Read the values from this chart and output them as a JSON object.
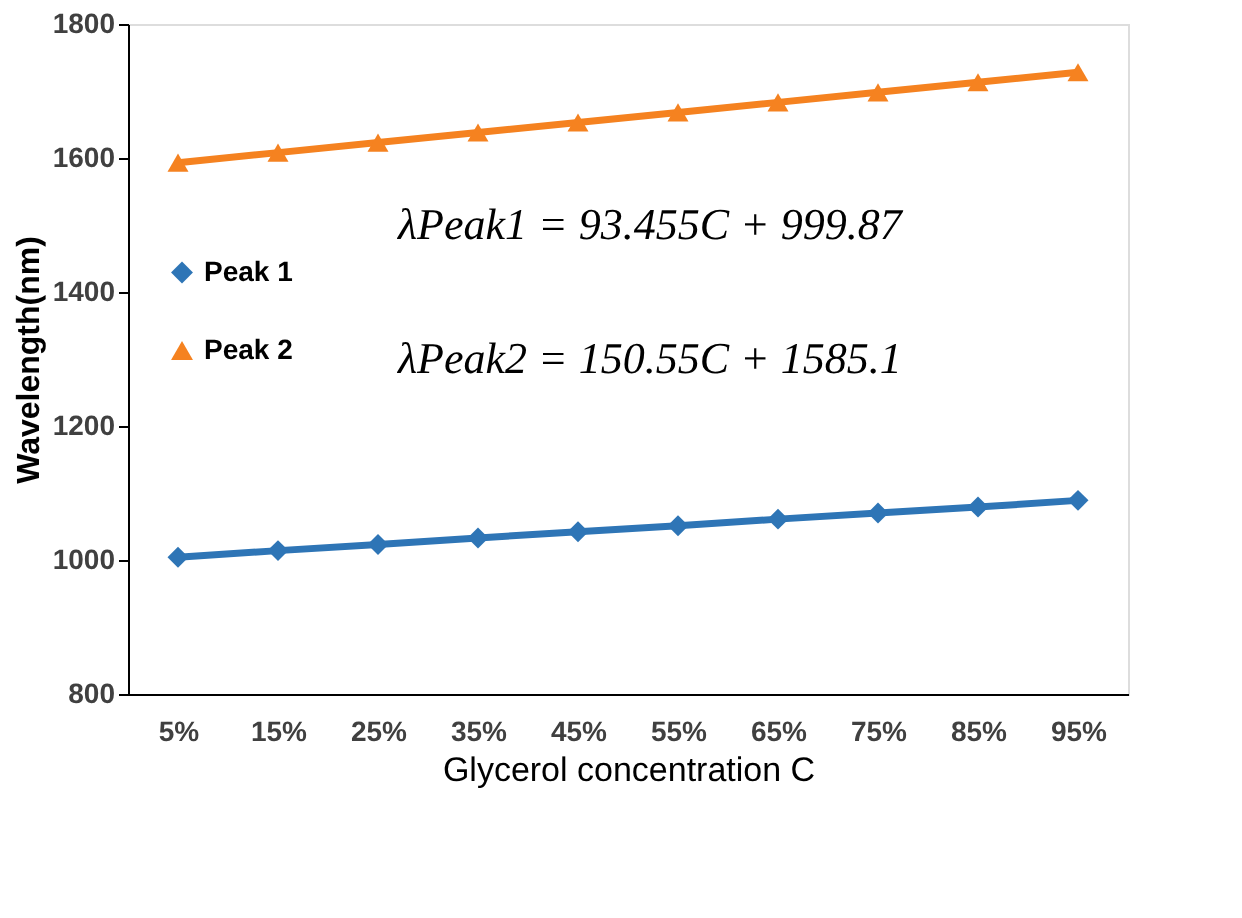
{
  "chart_data": {
    "type": "line",
    "xlabel": "Glycerol concentration C",
    "ylabel": "Wavelength(nm)",
    "categories": [
      "5%",
      "15%",
      "25%",
      "35%",
      "45%",
      "55%",
      "65%",
      "75%",
      "85%",
      "95%"
    ],
    "series": [
      {
        "name": "Peak 1",
        "color": "#2e75b6",
        "marker": "diamond",
        "values": [
          1004,
          1014,
          1023,
          1033,
          1042,
          1051,
          1061,
          1070,
          1079,
          1089
        ]
      },
      {
        "name": "Peak 2",
        "color": "#f58220",
        "marker": "triangle",
        "values": [
          1593,
          1608,
          1623,
          1638,
          1653,
          1668,
          1683,
          1698,
          1713,
          1728
        ]
      }
    ],
    "ylim": [
      800,
      1800
    ],
    "yticks": [
      800,
      1000,
      1200,
      1400,
      1600,
      1800
    ],
    "grid": false,
    "legend": "left",
    "annotations": [
      "λPeak1 = 93.455C + 999.87",
      "λPeak2 = 150.55C + 1585.1"
    ]
  }
}
